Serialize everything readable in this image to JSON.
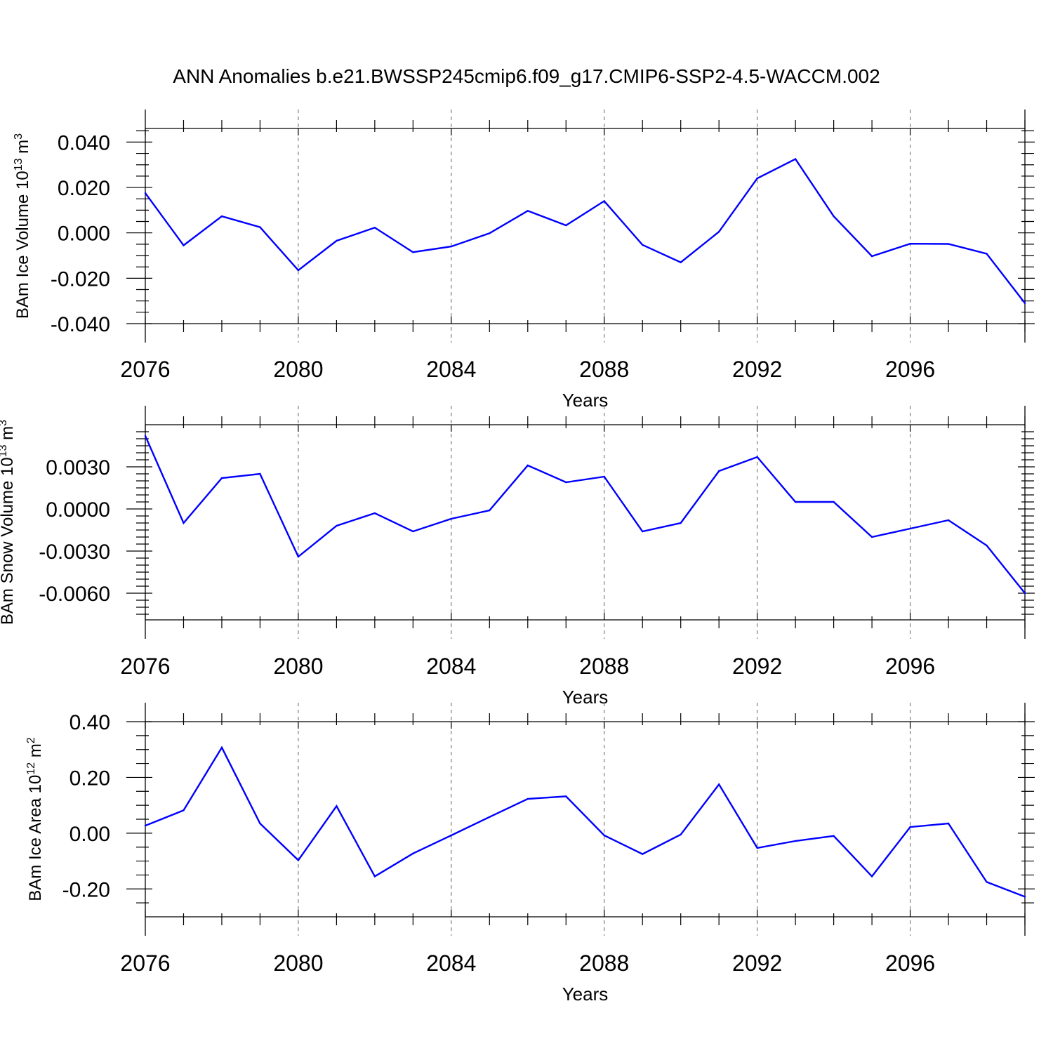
{
  "title": "ANN Anomalies b.e21.BWSSP245cmip6.f09_g17.CMIP6-SSP2-4.5-WACCM.002",
  "colors": {
    "line": "#0000ff",
    "axis": "#000000",
    "grid": "#666666"
  },
  "chart_data": [
    {
      "type": "line",
      "ylabel": "BAm Ice Volume 10",
      "ylabel_exp": "13",
      "ylabel_unit": " m",
      "ylabel_unit_exp": "3",
      "xlabel": "Years",
      "xlim": [
        2076,
        2099
      ],
      "ylim": [
        -0.04,
        0.046
      ],
      "yticks": [
        0.04,
        0.02,
        0.0,
        -0.02,
        -0.04
      ],
      "ytick_labels": [
        "0.040",
        "0.020",
        "0.000",
        "-0.020",
        "-0.040"
      ],
      "yminor": [
        0.045,
        0.035,
        0.03,
        0.025,
        0.015,
        0.01,
        0.005,
        -0.005,
        -0.01,
        -0.015,
        -0.025,
        -0.03,
        -0.035
      ],
      "xticks": [
        2076,
        2080,
        2084,
        2088,
        2092,
        2096
      ],
      "xtick_labels": [
        "2076",
        "2080",
        "2084",
        "2088",
        "2092",
        "2096"
      ],
      "x": [
        2076,
        2077,
        2078,
        2079,
        2080,
        2081,
        2082,
        2083,
        2084,
        2085,
        2086,
        2087,
        2088,
        2089,
        2090,
        2091,
        2092,
        2093,
        2094,
        2095,
        2096,
        2097,
        2098,
        2099
      ],
      "y": [
        0.0175,
        -0.0055,
        0.0073,
        0.0025,
        -0.0165,
        -0.0035,
        0.0023,
        -0.0085,
        -0.006,
        -0.0002,
        0.0097,
        0.0033,
        0.014,
        -0.0053,
        -0.013,
        0.0005,
        0.024,
        0.0325,
        0.0073,
        -0.0103,
        -0.0048,
        -0.0049,
        -0.0092,
        -0.031
      ]
    },
    {
      "type": "line",
      "ylabel": "BAm Snow Volume 10",
      "ylabel_exp": "13",
      "ylabel_unit": " m",
      "ylabel_unit_exp": "3",
      "xlabel": "Years",
      "xlim": [
        2076,
        2099
      ],
      "ylim": [
        -0.0079,
        0.006
      ],
      "yticks": [
        0.003,
        0.0,
        -0.003,
        -0.006
      ],
      "ytick_labels": [
        "0.0030",
        "0.0000",
        "-0.0030",
        "-0.0060"
      ],
      "yminor": [
        0.0055,
        0.005,
        0.0045,
        0.004,
        0.0035,
        0.0025,
        0.002,
        0.0015,
        0.001,
        0.0005,
        -0.0005,
        -0.001,
        -0.0015,
        -0.002,
        -0.0025,
        -0.0035,
        -0.004,
        -0.0045,
        -0.005,
        -0.0055,
        -0.0065,
        -0.007,
        -0.0075
      ],
      "xticks": [
        2076,
        2080,
        2084,
        2088,
        2092,
        2096
      ],
      "xtick_labels": [
        "2076",
        "2080",
        "2084",
        "2088",
        "2092",
        "2096"
      ],
      "x": [
        2076,
        2077,
        2078,
        2079,
        2080,
        2081,
        2082,
        2083,
        2084,
        2085,
        2086,
        2087,
        2088,
        2089,
        2090,
        2091,
        2092,
        2093,
        2094,
        2095,
        2096,
        2097,
        2098,
        2099
      ],
      "y": [
        0.0052,
        -0.001,
        0.0022,
        0.0025,
        -0.0034,
        -0.0012,
        -0.0003,
        -0.0016,
        -0.0007,
        -0.0001,
        0.0031,
        0.0019,
        0.0023,
        -0.0016,
        -0.001,
        0.0027,
        0.0037,
        0.0005,
        0.0005,
        -0.002,
        -0.0014,
        -0.0008,
        -0.0026,
        -0.006
      ]
    },
    {
      "type": "line",
      "ylabel": "BAm Ice Area 10",
      "ylabel_exp": "12",
      "ylabel_unit": " m",
      "ylabel_unit_exp": "2",
      "xlabel": "Years",
      "xlim": [
        2076,
        2099
      ],
      "ylim": [
        -0.3,
        0.4
      ],
      "yticks": [
        0.4,
        0.2,
        0.0,
        -0.2
      ],
      "ytick_labels": [
        "0.40",
        "0.20",
        "0.00",
        "-0.20"
      ],
      "yminor": [
        0.35,
        0.3,
        0.25,
        0.15,
        0.1,
        0.05,
        -0.05,
        -0.1,
        -0.15,
        -0.25
      ],
      "xticks": [
        2076,
        2080,
        2084,
        2088,
        2092,
        2096
      ],
      "xtick_labels": [
        "2076",
        "2080",
        "2084",
        "2088",
        "2092",
        "2096"
      ],
      "x": [
        2076,
        2077,
        2078,
        2079,
        2080,
        2081,
        2082,
        2083,
        2084,
        2085,
        2086,
        2087,
        2088,
        2089,
        2090,
        2091,
        2092,
        2093,
        2094,
        2095,
        2096,
        2097,
        2098,
        2099
      ],
      "y": [
        0.027,
        0.082,
        0.307,
        0.035,
        -0.097,
        0.097,
        -0.155,
        -0.073,
        -0.008,
        0.058,
        0.123,
        0.132,
        -0.008,
        -0.075,
        -0.005,
        0.175,
        -0.053,
        -0.028,
        -0.01,
        -0.155,
        0.022,
        0.035,
        -0.175,
        -0.228
      ]
    }
  ]
}
